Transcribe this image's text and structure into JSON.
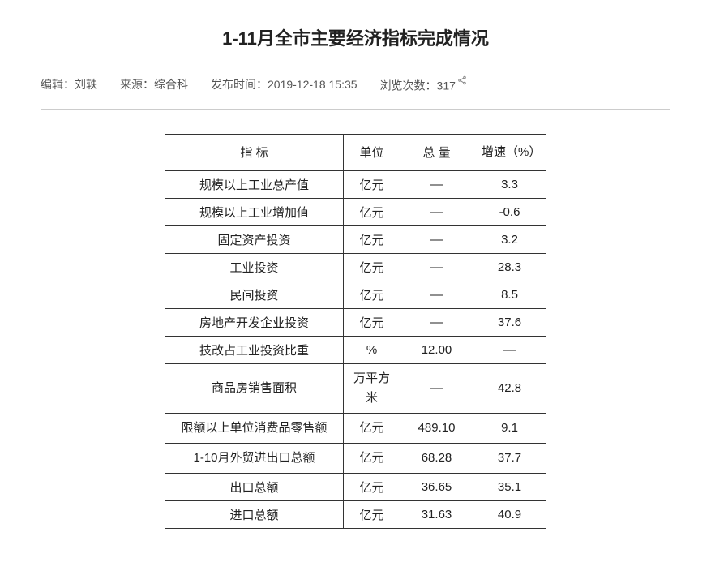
{
  "title": "1-11月全市主要经济指标完成情况",
  "meta": {
    "editor_label": "编辑：",
    "editor_value": "刘轶",
    "source_label": "来源：",
    "source_value": "综合科",
    "publish_label": "发布时间：",
    "publish_value": "2019-12-18 15:35",
    "views_label": "浏览次数：",
    "views_value": "317"
  },
  "table": {
    "headers": {
      "indicator": "指  标",
      "unit": "单位",
      "total": "总 量",
      "growth": "增速（%）"
    },
    "rows": [
      {
        "indicator": "规模以上工业总产值",
        "unit": "亿元",
        "total": "—",
        "growth": "3.3"
      },
      {
        "indicator": "规模以上工业增加值",
        "unit": "亿元",
        "total": "—",
        "growth": "-0.6"
      },
      {
        "indicator": "固定资产投资",
        "unit": "亿元",
        "total": "—",
        "growth": "3.2"
      },
      {
        "indicator": "工业投资",
        "unit": "亿元",
        "total": "—",
        "growth": "28.3"
      },
      {
        "indicator": "民间投资",
        "unit": "亿元",
        "total": "—",
        "growth": "8.5"
      },
      {
        "indicator": "房地产开发企业投资",
        "unit": "亿元",
        "total": "—",
        "growth": "37.6"
      },
      {
        "indicator": "技改占工业投资比重",
        "unit": "%",
        "total": "12.00",
        "growth": "—"
      },
      {
        "indicator": "商品房销售面积",
        "unit": "万平方米",
        "total": "—",
        "growth": "42.8"
      },
      {
        "indicator": "限额以上单位消费品零售额",
        "unit": "亿元",
        "total": "489.10",
        "growth": "9.1"
      },
      {
        "indicator": "1-10月外贸进出口总额",
        "unit": "亿元",
        "total": "68.28",
        "growth": "37.7"
      },
      {
        "indicator": "出口总额",
        "unit": "亿元",
        "total": "36.65",
        "growth": "35.1"
      },
      {
        "indicator": "进口总额",
        "unit": "亿元",
        "total": "31.63",
        "growth": "40.9"
      }
    ]
  },
  "styling": {
    "background_color": "#ffffff",
    "text_color": "#333333",
    "title_color": "#222222",
    "meta_color": "#555555",
    "border_color": "#333333",
    "divider_color": "#cccccc",
    "title_fontsize": 22,
    "meta_fontsize": 14,
    "table_fontsize": 15,
    "col_widths": {
      "indicator": 220,
      "unit": 70,
      "total": 90,
      "growth": 90
    }
  }
}
